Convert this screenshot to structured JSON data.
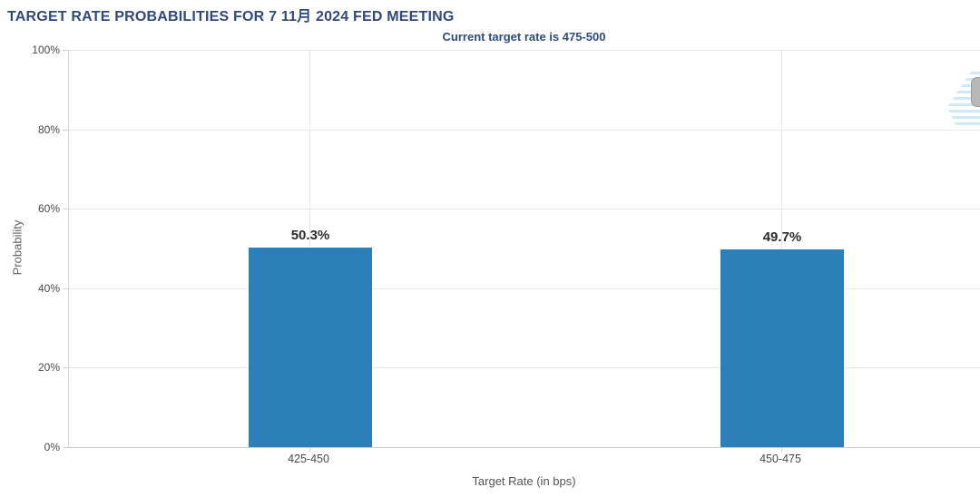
{
  "chart_data": {
    "type": "bar",
    "title": "TARGET RATE PROBABILITIES FOR 7 11月 2024 FED MEETING",
    "subtitle": "Current target rate is 475-500",
    "categories": [
      "425-450",
      "450-475"
    ],
    "values": [
      50.3,
      49.7
    ],
    "value_labels": [
      "50.3%",
      "49.7%"
    ],
    "xlabel": "Target Rate (in bps)",
    "ylabel": "Probability",
    "ylim": [
      0,
      100
    ],
    "yticks": [
      "0%",
      "20%",
      "40%",
      "60%",
      "80%",
      "100%"
    ],
    "grid": true,
    "legend": "none",
    "bar_color": "#2b80b9"
  },
  "colors": {
    "title_navy": "#2f4a7d",
    "bar_blue": "#2b80b9",
    "gridline_grey": "#e7e7e7",
    "axis_grey": "#c9c9c9",
    "tick_label_grey": "#4a4a4a",
    "value_label_dark": "#2b2b2b",
    "watermark_light_blue": "#cfe9f7",
    "scrollbar_grey": "#b8b8b8"
  }
}
